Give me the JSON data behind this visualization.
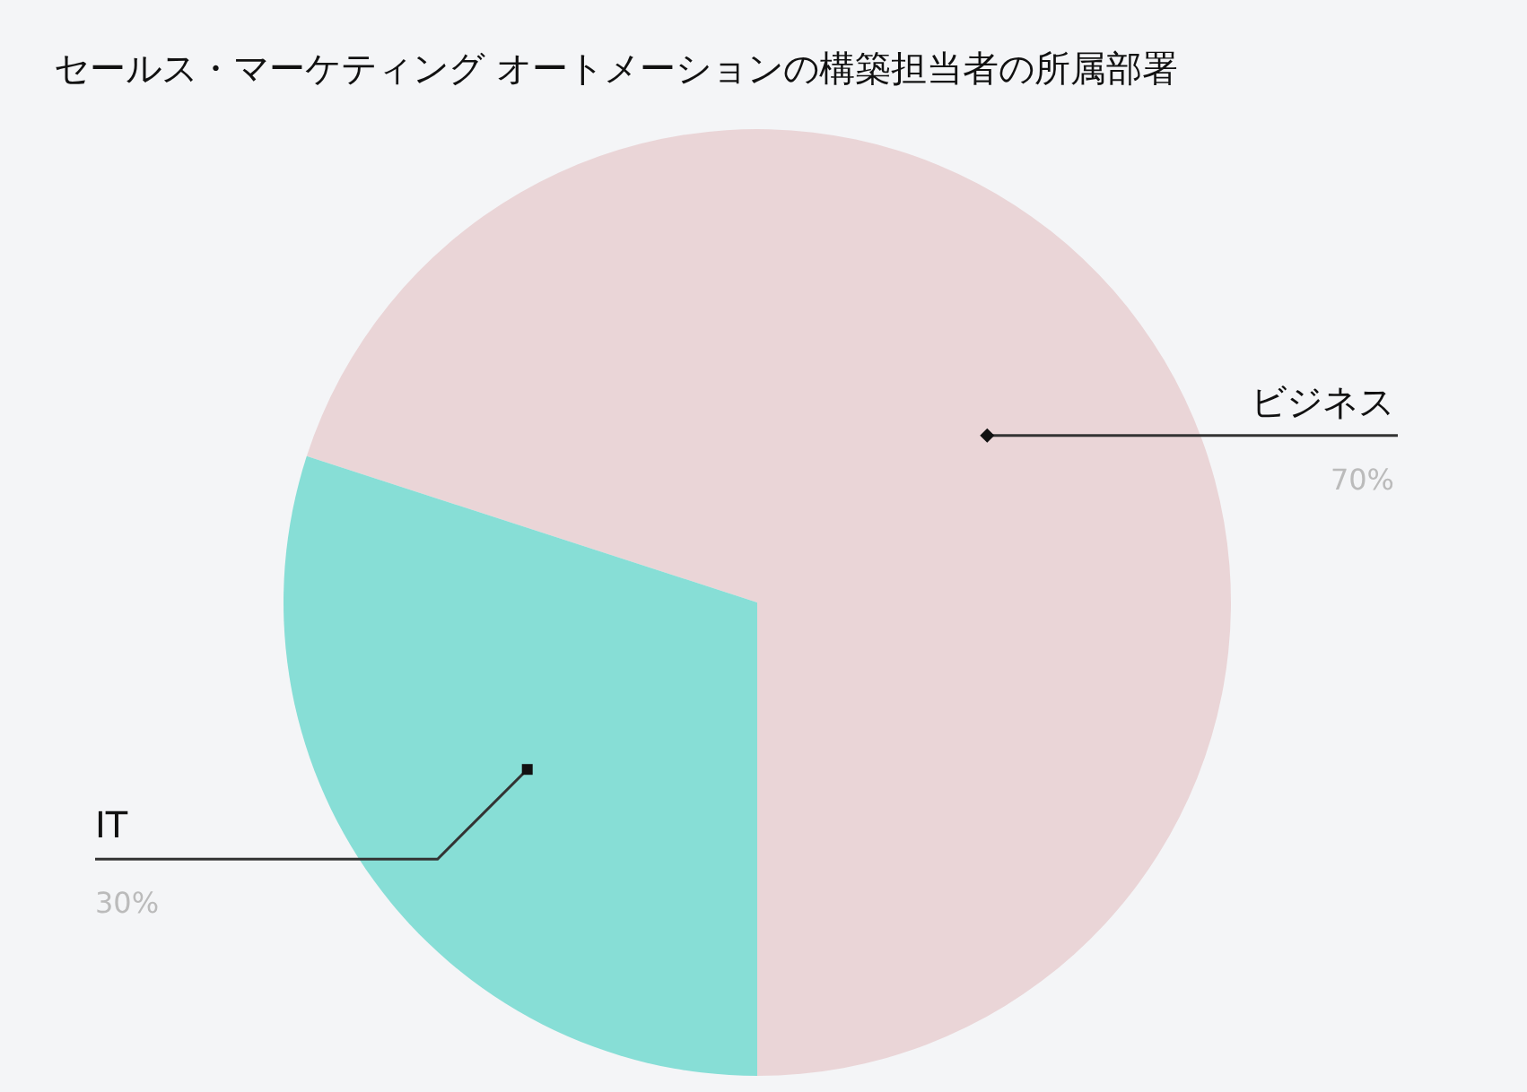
{
  "chart_data": {
    "type": "pie",
    "title": "セールス・マーケティング オートメーションの構築担当者の所属部署",
    "categories": [
      "ビジネス",
      "IT"
    ],
    "values": [
      70,
      30
    ],
    "colors": [
      "#ead5d7",
      "#87ded6"
    ],
    "value_labels": [
      "70%",
      "30%"
    ]
  }
}
